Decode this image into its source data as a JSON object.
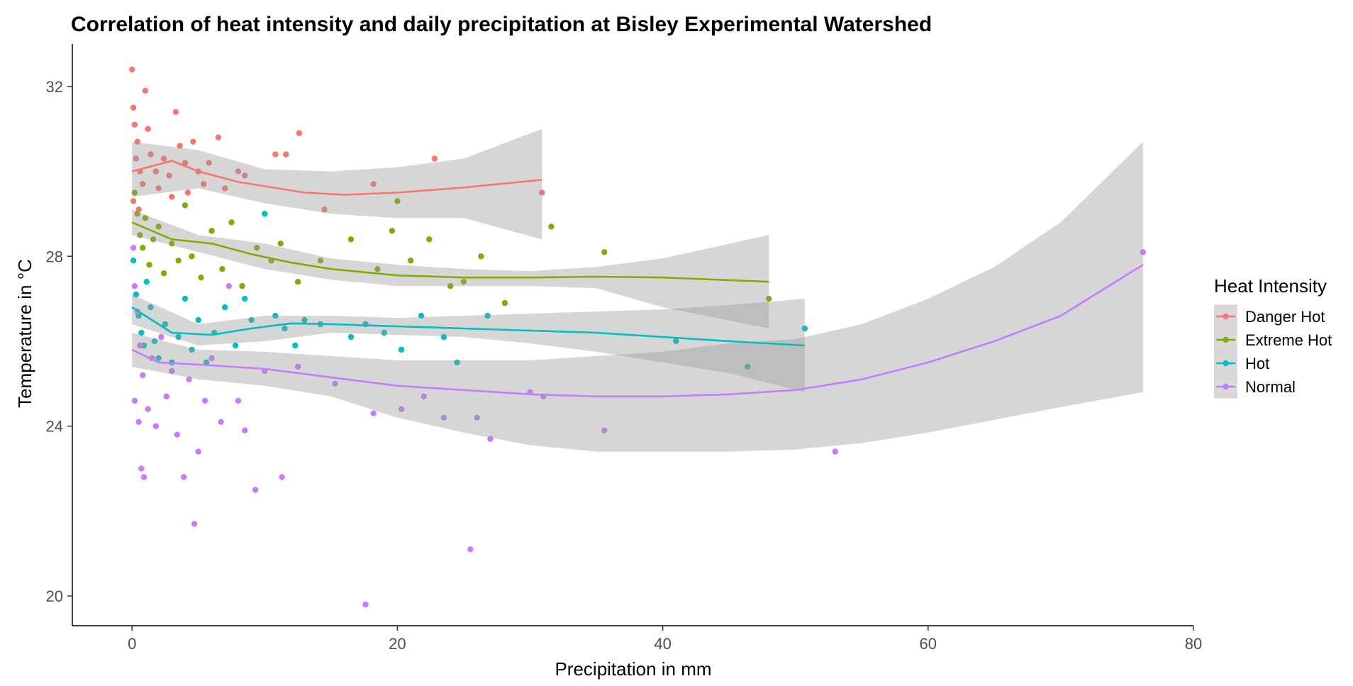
{
  "chart_data": {
    "type": "scatter",
    "title": "Correlation of heat intensity and daily precipitation at Bisley Experimental Watershed",
    "xlabel": "Precipitation in mm",
    "ylabel": "Temperature in °C",
    "xlim": [
      -4.5,
      80
    ],
    "ylim": [
      19.3,
      33.0
    ],
    "xticks": [
      0,
      20,
      40,
      60,
      80
    ],
    "yticks": [
      20,
      24,
      28,
      32
    ],
    "grid": false,
    "legend": {
      "title": "Heat Intensity",
      "position": "right"
    },
    "series": [
      {
        "name": "Danger Hot",
        "color": "#F8766D",
        "points": [
          [
            0.0,
            32.4
          ],
          [
            0.1,
            31.5
          ],
          [
            0.2,
            31.1
          ],
          [
            0.4,
            30.7
          ],
          [
            0.3,
            30.3
          ],
          [
            0.6,
            30.0
          ],
          [
            0.8,
            29.7
          ],
          [
            0.1,
            29.3
          ],
          [
            0.5,
            29.1
          ],
          [
            1.0,
            31.9
          ],
          [
            1.2,
            31.0
          ],
          [
            1.4,
            30.4
          ],
          [
            1.8,
            30.0
          ],
          [
            2.0,
            29.6
          ],
          [
            2.4,
            30.3
          ],
          [
            2.8,
            29.9
          ],
          [
            3.0,
            29.4
          ],
          [
            3.3,
            31.4
          ],
          [
            3.6,
            30.6
          ],
          [
            4.0,
            30.2
          ],
          [
            4.2,
            29.5
          ],
          [
            4.6,
            30.7
          ],
          [
            5.0,
            30.0
          ],
          [
            5.4,
            29.7
          ],
          [
            5.8,
            30.2
          ],
          [
            6.5,
            30.8
          ],
          [
            7.0,
            29.6
          ],
          [
            8.0,
            30.0
          ],
          [
            8.5,
            29.9
          ],
          [
            10.8,
            30.4
          ],
          [
            11.6,
            30.4
          ],
          [
            12.6,
            30.9
          ],
          [
            14.5,
            29.1
          ],
          [
            18.2,
            29.7
          ],
          [
            22.8,
            30.3
          ],
          [
            30.9,
            29.5
          ]
        ],
        "fit": [
          [
            0,
            30.0
          ],
          [
            3,
            30.25
          ],
          [
            5,
            30.0
          ],
          [
            8,
            29.75
          ],
          [
            10,
            29.65
          ],
          [
            13,
            29.5
          ],
          [
            16,
            29.45
          ],
          [
            20,
            29.5
          ],
          [
            25,
            29.62
          ],
          [
            30.9,
            29.8
          ]
        ],
        "band": [
          [
            0,
            30.7,
            29.4
          ],
          [
            5,
            30.5,
            29.6
          ],
          [
            10,
            30.05,
            29.25
          ],
          [
            15,
            30.0,
            29.0
          ],
          [
            20,
            30.1,
            28.9
          ],
          [
            25,
            30.3,
            28.9
          ],
          [
            30.9,
            31.0,
            28.4
          ]
        ]
      },
      {
        "name": "Extreme Hot",
        "color": "#7CAE00",
        "points": [
          [
            0.2,
            29.5
          ],
          [
            0.4,
            29.0
          ],
          [
            0.6,
            28.5
          ],
          [
            0.8,
            28.2
          ],
          [
            1.0,
            28.9
          ],
          [
            1.3,
            27.8
          ],
          [
            1.6,
            28.4
          ],
          [
            2.0,
            28.7
          ],
          [
            2.4,
            27.6
          ],
          [
            3.0,
            28.3
          ],
          [
            3.5,
            27.9
          ],
          [
            4.0,
            29.2
          ],
          [
            4.5,
            28.0
          ],
          [
            5.2,
            27.5
          ],
          [
            6.0,
            28.6
          ],
          [
            6.8,
            27.7
          ],
          [
            7.5,
            28.8
          ],
          [
            8.3,
            27.3
          ],
          [
            9.4,
            28.2
          ],
          [
            10.5,
            27.9
          ],
          [
            11.2,
            28.3
          ],
          [
            12.5,
            27.4
          ],
          [
            14.2,
            27.9
          ],
          [
            16.5,
            28.4
          ],
          [
            18.5,
            27.7
          ],
          [
            19.6,
            28.6
          ],
          [
            20.0,
            29.3
          ],
          [
            21.0,
            27.9
          ],
          [
            22.4,
            28.4
          ],
          [
            24.0,
            27.3
          ],
          [
            25.0,
            27.4
          ],
          [
            26.3,
            28.0
          ],
          [
            28.1,
            26.9
          ],
          [
            31.6,
            28.7
          ],
          [
            35.6,
            28.1
          ],
          [
            48.0,
            27.0
          ]
        ],
        "fit": [
          [
            0,
            28.8
          ],
          [
            3,
            28.4
          ],
          [
            6,
            28.3
          ],
          [
            9,
            28.05
          ],
          [
            12,
            27.85
          ],
          [
            15,
            27.7
          ],
          [
            20,
            27.55
          ],
          [
            25,
            27.5
          ],
          [
            30,
            27.5
          ],
          [
            35,
            27.52
          ],
          [
            40,
            27.5
          ],
          [
            48,
            27.4
          ]
        ],
        "band": [
          [
            0,
            29.1,
            28.5
          ],
          [
            5,
            28.5,
            28.1
          ],
          [
            10,
            28.3,
            27.7
          ],
          [
            15,
            27.95,
            27.45
          ],
          [
            20,
            27.8,
            27.3
          ],
          [
            25,
            27.7,
            27.3
          ],
          [
            30,
            27.65,
            27.3
          ],
          [
            35,
            27.75,
            27.25
          ],
          [
            40,
            27.95,
            26.8
          ],
          [
            48,
            28.5,
            26.3
          ]
        ]
      },
      {
        "name": "Hot",
        "color": "#00BFC4",
        "points": [
          [
            0.1,
            27.9
          ],
          [
            0.3,
            27.1
          ],
          [
            0.5,
            26.6
          ],
          [
            0.7,
            26.2
          ],
          [
            0.9,
            25.9
          ],
          [
            1.1,
            27.4
          ],
          [
            1.4,
            26.8
          ],
          [
            1.7,
            26.0
          ],
          [
            2.0,
            25.6
          ],
          [
            2.5,
            26.4
          ],
          [
            3.0,
            25.5
          ],
          [
            3.5,
            26.1
          ],
          [
            4.0,
            27.0
          ],
          [
            4.5,
            25.8
          ],
          [
            5.0,
            26.5
          ],
          [
            5.6,
            25.5
          ],
          [
            6.2,
            26.2
          ],
          [
            7.0,
            26.8
          ],
          [
            7.8,
            25.9
          ],
          [
            8.5,
            27.0
          ],
          [
            9.0,
            26.5
          ],
          [
            10.0,
            29.0
          ],
          [
            10.8,
            26.6
          ],
          [
            11.5,
            26.3
          ],
          [
            12.3,
            25.9
          ],
          [
            13.0,
            26.5
          ],
          [
            14.2,
            26.4
          ],
          [
            16.5,
            26.1
          ],
          [
            17.6,
            26.4
          ],
          [
            19.0,
            26.2
          ],
          [
            20.3,
            25.8
          ],
          [
            21.8,
            26.6
          ],
          [
            23.5,
            26.1
          ],
          [
            24.5,
            25.5
          ],
          [
            26.8,
            26.6
          ],
          [
            41.0,
            26.0
          ],
          [
            46.4,
            25.4
          ],
          [
            50.7,
            26.3
          ]
        ],
        "fit": [
          [
            0,
            26.8
          ],
          [
            3,
            26.2
          ],
          [
            6,
            26.15
          ],
          [
            9,
            26.3
          ],
          [
            12,
            26.42
          ],
          [
            15,
            26.4
          ],
          [
            20,
            26.35
          ],
          [
            25,
            26.3
          ],
          [
            30,
            26.25
          ],
          [
            35,
            26.2
          ],
          [
            40,
            26.1
          ],
          [
            45,
            26.0
          ],
          [
            50.7,
            25.9
          ]
        ],
        "band": [
          [
            0,
            27.1,
            26.4
          ],
          [
            5,
            26.4,
            25.9
          ],
          [
            10,
            26.6,
            26.0
          ],
          [
            15,
            26.6,
            26.2
          ],
          [
            20,
            26.55,
            26.15
          ],
          [
            25,
            26.6,
            26.1
          ],
          [
            30,
            26.65,
            25.95
          ],
          [
            35,
            26.7,
            25.75
          ],
          [
            40,
            26.75,
            25.5
          ],
          [
            45,
            26.85,
            25.25
          ],
          [
            50.7,
            27.0,
            24.8
          ]
        ]
      },
      {
        "name": "Normal",
        "color": "#C77CFF",
        "points": [
          [
            0.1,
            28.2
          ],
          [
            0.2,
            27.3
          ],
          [
            0.4,
            26.7
          ],
          [
            0.6,
            25.9
          ],
          [
            0.8,
            25.2
          ],
          [
            0.2,
            24.6
          ],
          [
            0.5,
            24.1
          ],
          [
            0.7,
            23.0
          ],
          [
            0.9,
            22.8
          ],
          [
            1.2,
            24.4
          ],
          [
            1.5,
            25.6
          ],
          [
            1.8,
            24.0
          ],
          [
            2.2,
            26.1
          ],
          [
            2.6,
            24.7
          ],
          [
            3.0,
            25.3
          ],
          [
            3.4,
            23.8
          ],
          [
            3.9,
            22.8
          ],
          [
            4.3,
            25.1
          ],
          [
            4.7,
            21.7
          ],
          [
            5.0,
            23.4
          ],
          [
            5.5,
            24.6
          ],
          [
            6.0,
            25.6
          ],
          [
            6.7,
            24.1
          ],
          [
            7.3,
            27.3
          ],
          [
            8.0,
            24.6
          ],
          [
            8.5,
            23.9
          ],
          [
            9.3,
            22.5
          ],
          [
            10.0,
            25.3
          ],
          [
            11.3,
            22.8
          ],
          [
            12.5,
            25.4
          ],
          [
            15.3,
            25.0
          ],
          [
            17.6,
            19.8
          ],
          [
            18.2,
            24.3
          ],
          [
            20.3,
            24.4
          ],
          [
            22.0,
            24.7
          ],
          [
            23.5,
            24.2
          ],
          [
            25.5,
            21.1
          ],
          [
            26.0,
            24.2
          ],
          [
            27.0,
            23.7
          ],
          [
            30.0,
            24.8
          ],
          [
            31.0,
            24.7
          ],
          [
            35.6,
            23.9
          ],
          [
            53.0,
            23.4
          ],
          [
            76.2,
            28.1
          ]
        ],
        "fit": [
          [
            0,
            25.8
          ],
          [
            2,
            25.5
          ],
          [
            5,
            25.45
          ],
          [
            10,
            25.35
          ],
          [
            15,
            25.15
          ],
          [
            20,
            24.95
          ],
          [
            25,
            24.85
          ],
          [
            30,
            24.75
          ],
          [
            35,
            24.7
          ],
          [
            40,
            24.7
          ],
          [
            45,
            24.75
          ],
          [
            50,
            24.85
          ],
          [
            55,
            25.1
          ],
          [
            60,
            25.5
          ],
          [
            65,
            26.0
          ],
          [
            70,
            26.6
          ],
          [
            76.2,
            27.8
          ]
        ],
        "band": [
          [
            0,
            26.2,
            25.4
          ],
          [
            5,
            25.8,
            25.1
          ],
          [
            10,
            25.75,
            24.95
          ],
          [
            15,
            25.65,
            24.7
          ],
          [
            20,
            25.55,
            24.2
          ],
          [
            25,
            25.55,
            23.85
          ],
          [
            30,
            25.55,
            23.55
          ],
          [
            35,
            25.65,
            23.4
          ],
          [
            40,
            25.75,
            23.4
          ],
          [
            45,
            25.95,
            23.4
          ],
          [
            50,
            26.05,
            23.45
          ],
          [
            55,
            26.4,
            23.6
          ],
          [
            60,
            27.0,
            23.85
          ],
          [
            65,
            27.75,
            24.15
          ],
          [
            70,
            28.8,
            24.45
          ],
          [
            76.2,
            30.7,
            24.8
          ]
        ]
      }
    ]
  }
}
